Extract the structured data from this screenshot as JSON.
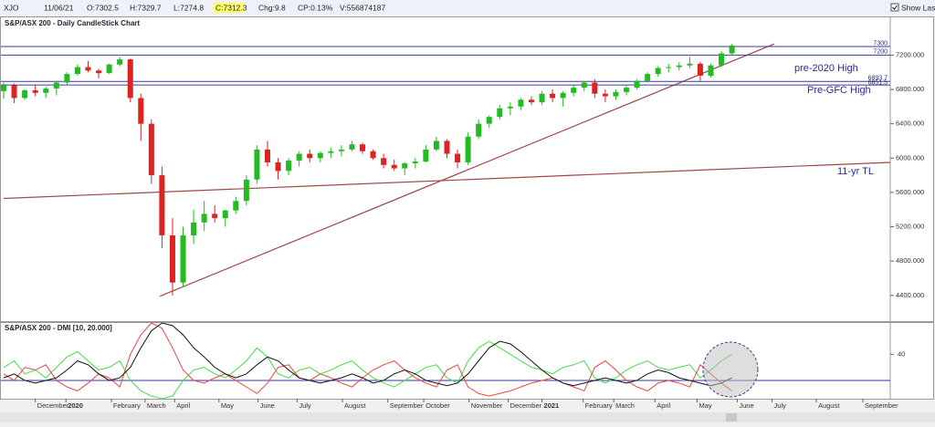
{
  "toolbar": {
    "symbol": "XJO",
    "date": "11/06/21",
    "open": "O:7302.5",
    "high": "H:7329.7",
    "low": "L:7274.8",
    "close": "C:7312.3",
    "change": "Chg:9.8",
    "change_pct": "CP:0.13%",
    "volume": "V:556874187",
    "show_last": "Show Last"
  },
  "chart_data": [
    {
      "type": "candlestick",
      "title": "S&P/ASX 200 - Daily CandleStick Chart",
      "up_color": "#22bb22",
      "down_color": "#dd2222",
      "xlim": [
        0,
        84
      ],
      "ylim": [
        4100,
        7640
      ],
      "yticks": [
        {
          "value": 7200,
          "label": "7200.000"
        },
        {
          "value": 6800,
          "label": "6800.000"
        },
        {
          "value": 6400,
          "label": "6400.000"
        },
        {
          "value": 6000,
          "label": "6000.000"
        },
        {
          "value": 5600,
          "label": "5600.000"
        },
        {
          "value": 5200,
          "label": "5200.000"
        },
        {
          "value": 4800,
          "label": "4800.000"
        },
        {
          "value": 4400,
          "label": "4400.000"
        }
      ],
      "x": [
        0,
        1,
        2,
        3,
        4,
        5,
        6,
        7,
        8,
        9,
        10,
        11,
        12,
        13,
        14,
        15,
        16,
        17,
        18,
        19,
        20,
        21,
        22,
        23,
        24,
        25,
        26,
        27,
        28,
        29,
        30,
        31,
        32,
        33,
        34,
        35,
        36,
        37,
        38,
        39,
        40,
        41,
        42,
        43,
        44,
        45,
        46,
        47,
        48,
        49,
        50,
        51,
        52,
        53,
        54,
        55,
        56,
        57,
        58,
        59,
        60,
        61,
        62,
        63,
        64,
        65,
        66,
        67,
        68,
        69
      ],
      "open": [
        6780,
        6850,
        6700,
        6790,
        6760,
        6810,
        6880,
        6980,
        7060,
        7020,
        6990,
        7090,
        7150,
        6700,
        6400,
        5800,
        5100,
        4550,
        5100,
        5250,
        5350,
        5300,
        5390,
        5500,
        5750,
        6100,
        5950,
        5850,
        5970,
        6050,
        6000,
        6060,
        6080,
        6100,
        6160,
        6080,
        6000,
        5920,
        5880,
        5940,
        5960,
        6100,
        6200,
        6050,
        5950,
        6250,
        6400,
        6480,
        6580,
        6600,
        6680,
        6650,
        6750,
        6700,
        6760,
        6820,
        6880,
        6750,
        6720,
        6770,
        6820,
        6900,
        6980,
        7050,
        7060,
        7080,
        7100,
        6960,
        7080,
        7220
      ],
      "high": [
        6880,
        6870,
        6800,
        6850,
        6830,
        6900,
        7000,
        7090,
        7130,
        7040,
        7100,
        7180,
        7160,
        6750,
        6450,
        5900,
        5300,
        5200,
        5400,
        5500,
        5450,
        5400,
        5550,
        5800,
        6150,
        6200,
        6000,
        6000,
        6080,
        6100,
        6080,
        6120,
        6150,
        6200,
        6180,
        6100,
        6050,
        5980,
        5950,
        6000,
        6150,
        6250,
        6220,
        6100,
        6300,
        6450,
        6500,
        6620,
        6650,
        6700,
        6720,
        6780,
        6800,
        6780,
        6850,
        6900,
        6920,
        6800,
        6800,
        6850,
        6920,
        7000,
        7070,
        7100,
        7120,
        7180,
        7120,
        7100,
        7250,
        7330
      ],
      "low": [
        6690,
        6640,
        6680,
        6720,
        6700,
        6730,
        6850,
        6960,
        7000,
        6930,
        6980,
        7070,
        6650,
        6200,
        5700,
        4950,
        4400,
        4500,
        5000,
        5150,
        5250,
        5200,
        5350,
        5450,
        5700,
        5900,
        5750,
        5800,
        5900,
        5950,
        5950,
        6000,
        6020,
        6080,
        6050,
        5980,
        5880,
        5850,
        5800,
        5880,
        5950,
        6080,
        6000,
        5880,
        5920,
        6220,
        6350,
        6450,
        6500,
        6560,
        6620,
        6620,
        6650,
        6600,
        6720,
        6780,
        6700,
        6650,
        6680,
        6730,
        6800,
        6880,
        6950,
        7000,
        7020,
        7050,
        6900,
        6940,
        7060,
        7200
      ],
      "close": [
        6850,
        6700,
        6790,
        6760,
        6810,
        6880,
        6980,
        7060,
        7020,
        6990,
        7090,
        7150,
        6700,
        6400,
        5800,
        5100,
        4550,
        5100,
        5250,
        5350,
        5300,
        5390,
        5500,
        5750,
        6100,
        5950,
        5850,
        5970,
        6050,
        6000,
        6060,
        6080,
        6100,
        6160,
        6080,
        6000,
        5920,
        5880,
        5940,
        5960,
        6100,
        6200,
        6050,
        5950,
        6250,
        6400,
        6480,
        6580,
        6600,
        6680,
        6650,
        6750,
        6700,
        6760,
        6820,
        6880,
        6750,
        6720,
        6770,
        6820,
        6900,
        6980,
        7050,
        7060,
        7080,
        7100,
        6960,
        7080,
        7220,
        7312.3
      ],
      "hlines": [
        {
          "value": 7300,
          "label": "7300"
        },
        {
          "value": 7200,
          "label": "7200"
        },
        {
          "value": 6893.7,
          "label": "6893.7"
        },
        {
          "value": 6851.5,
          "label": "6851.5"
        }
      ],
      "hline_color": "#3a3a9a",
      "trendlines": [
        {
          "x": [
            14.8,
            73
          ],
          "y": [
            4390,
            7330
          ]
        },
        {
          "x": [
            0,
            84
          ],
          "y": [
            5530,
            5950
          ]
        }
      ],
      "trendline_color": "#a04848",
      "annotations": [
        "pre-2020 High",
        "Pre-GFC High",
        "11-yr TL"
      ]
    },
    {
      "type": "line",
      "title": "S&P/ASX 200 - DMI [10, 20.000]",
      "xlim": [
        0,
        84
      ],
      "ylim": [
        6,
        64
      ],
      "yticks": [
        40
      ],
      "hline": 20,
      "hline_color": "#3a3a9a",
      "xticks": [
        {
          "value": 3.0,
          "label": "December"
        },
        {
          "value": 5.9,
          "label": "2020"
        },
        {
          "value": 10.2,
          "label": "February"
        },
        {
          "value": 13.4,
          "label": "March"
        },
        {
          "value": 16.2,
          "label": "April"
        },
        {
          "value": 20.4,
          "label": "May"
        },
        {
          "value": 24.1,
          "label": "June"
        },
        {
          "value": 27.8,
          "label": "July"
        },
        {
          "value": 32.1,
          "label": "August"
        },
        {
          "value": 36.4,
          "label": "September"
        },
        {
          "value": 39.8,
          "label": "October"
        },
        {
          "value": 44.1,
          "label": "November"
        },
        {
          "value": 47.8,
          "label": "December"
        },
        {
          "value": 51.0,
          "label": "2021"
        },
        {
          "value": 54.9,
          "label": "February"
        },
        {
          "value": 57.8,
          "label": "March"
        },
        {
          "value": 61.7,
          "label": "April"
        },
        {
          "value": 65.7,
          "label": "May"
        },
        {
          "value": 69.5,
          "label": "June"
        },
        {
          "value": 72.8,
          "label": "July"
        },
        {
          "value": 77.0,
          "label": "August"
        },
        {
          "value": 81.4,
          "label": "September"
        }
      ],
      "series": [
        {
          "color": "#44dd44",
          "values": [
            30,
            35,
            25,
            28,
            22,
            30,
            38,
            42,
            35,
            28,
            30,
            35,
            20,
            12,
            8,
            6,
            8,
            20,
            28,
            30,
            25,
            22,
            28,
            35,
            45,
            38,
            25,
            22,
            28,
            30,
            25,
            28,
            32,
            35,
            28,
            22,
            18,
            15,
            20,
            25,
            30,
            32,
            22,
            18,
            35,
            45,
            50,
            45,
            40,
            35,
            30,
            28,
            25,
            30,
            32,
            35,
            22,
            18,
            22,
            28,
            32,
            35,
            30,
            28,
            30,
            32,
            22,
            28,
            35,
            40
          ]
        },
        {
          "color": "#ee4444",
          "values": [
            25,
            20,
            30,
            28,
            32,
            20,
            15,
            12,
            18,
            25,
            22,
            15,
            40,
            55,
            64,
            60,
            45,
            28,
            20,
            18,
            22,
            25,
            20,
            15,
            10,
            18,
            30,
            32,
            22,
            20,
            25,
            22,
            18,
            15,
            22,
            28,
            32,
            35,
            28,
            22,
            18,
            15,
            28,
            32,
            15,
            10,
            8,
            10,
            12,
            15,
            18,
            20,
            22,
            18,
            15,
            12,
            30,
            35,
            28,
            20,
            15,
            12,
            18,
            20,
            18,
            15,
            32,
            25,
            18,
            12
          ]
        },
        {
          "color": "#111111",
          "values": [
            22,
            25,
            20,
            18,
            20,
            22,
            28,
            35,
            32,
            25,
            20,
            22,
            30,
            45,
            58,
            64,
            62,
            55,
            45,
            38,
            30,
            25,
            22,
            25,
            32,
            38,
            35,
            28,
            22,
            20,
            18,
            20,
            22,
            25,
            22,
            18,
            20,
            25,
            28,
            25,
            20,
            18,
            16,
            18,
            25,
            35,
            45,
            50,
            48,
            42,
            35,
            28,
            22,
            18,
            16,
            18,
            20,
            22,
            20,
            18,
            20,
            25,
            28,
            26,
            22,
            20,
            18,
            16,
            18,
            22
          ]
        }
      ]
    }
  ]
}
